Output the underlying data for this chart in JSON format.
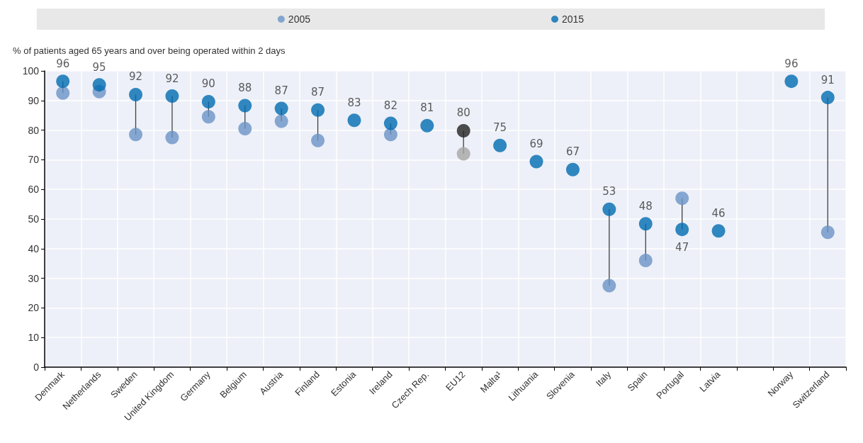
{
  "chart_data": {
    "type": "scatter",
    "ylabel": "% of patients aged 65 years and over being operated within 2 days",
    "categories": [
      "Denmark",
      "Netherlands",
      "Sweden",
      "United Kingdom",
      "Germany",
      "Belgium",
      "Austria",
      "Finland",
      "Estonia",
      "Ireland",
      "Czech Rep.",
      "EU12",
      "Malta¹",
      "Lithuania",
      "Slovenia",
      "Italy",
      "Spain",
      "Portugal",
      "Latvia",
      null,
      "Norway",
      "Switzerland"
    ],
    "series": [
      {
        "name": "2005",
        "color": "#6a93c6",
        "colors": [
          "#6a93c6",
          "#6a93c6",
          "#6a93c6",
          "#6a93c6",
          "#6a93c6",
          "#6a93c6",
          "#6a93c6",
          "#6a93c6",
          "#6a93c6",
          "#6a93c6",
          "#6a93c6",
          "#a6a6a6",
          "#6a93c6",
          "#6a93c6",
          "#6a93c6",
          "#6a93c6",
          "#6a93c6",
          "#6a93c6",
          "#6a93c6",
          "#6a93c6",
          "#6a93c6",
          "#6a93c6"
        ],
        "values": [
          92.5,
          93,
          78.5,
          77.5,
          84.5,
          80.5,
          83,
          76.5,
          null,
          78.5,
          null,
          72,
          null,
          null,
          null,
          27.5,
          36,
          57,
          null,
          null,
          null,
          45.5
        ]
      },
      {
        "name": "2015",
        "color": "#006bb0",
        "colors": [
          "#006bb0",
          "#006bb0",
          "#006bb0",
          "#006bb0",
          "#006bb0",
          "#006bb0",
          "#006bb0",
          "#006bb0",
          "#006bb0",
          "#006bb0",
          "#006bb0",
          "#222222",
          "#006bb0",
          "#006bb0",
          "#006bb0",
          "#006bb0",
          "#006bb0",
          "#006bb0",
          "#006bb0",
          "#006bb0",
          "#006bb0",
          "#006bb0"
        ],
        "values": [
          96.5,
          95.3,
          92,
          91.5,
          89.6,
          88.3,
          87.3,
          86.8,
          83.3,
          82.3,
          81.5,
          79.8,
          74.8,
          69.4,
          66.7,
          53.3,
          48.4,
          46.5,
          46,
          null,
          96.5,
          91
        ],
        "value_labels": [
          "96",
          "95",
          "92",
          "92",
          "90",
          "88",
          "87",
          "87",
          "83",
          "82",
          "81",
          "80",
          "75",
          "69",
          "67",
          "53",
          "48",
          "47",
          "46",
          null,
          "96",
          "91"
        ]
      }
    ],
    "ylim": [
      0,
      100
    ],
    "yticks": [
      0,
      10,
      20,
      30,
      40,
      50,
      60,
      70,
      80,
      90,
      100
    ],
    "grid": true,
    "legend": "top",
    "marker": "circle"
  }
}
